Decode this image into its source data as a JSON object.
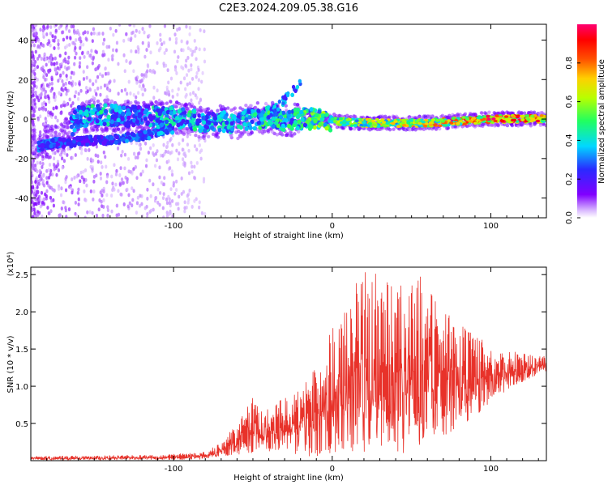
{
  "title": "C2E3.2024.209.05.38.G16",
  "chart_data": [
    {
      "type": "heatmap",
      "xlabel": "Height of straight line (km)",
      "ylabel": "Frequency (Hz)",
      "xlim": [
        -190,
        135
      ],
      "ylim": [
        -50,
        48
      ],
      "xticks": [
        -100,
        0,
        100
      ],
      "yticks": [
        -40,
        -20,
        0,
        20,
        40
      ],
      "colorbar": {
        "label": "Normalized spectral amplitude",
        "range": [
          0.0,
          1.0
        ],
        "ticks": [
          0.0,
          0.2,
          0.4,
          0.6,
          0.8
        ],
        "colormap": "rainbow (white-violet-blue-cyan-green-yellow-red-magenta)"
      },
      "ridge_description": "main energy ridge near 0 Hz widening toward negative heights; two branches near 0 and -10 Hz between -190 and -100 km; scattered noise at low heights",
      "ridge": {
        "x": [
          -185,
          -170,
          -160,
          -150,
          -140,
          -130,
          -120,
          -110,
          -100,
          -90,
          -80,
          -70,
          -60,
          -50,
          -40,
          -30,
          -20,
          -10,
          0,
          20,
          40,
          60,
          80,
          100,
          120,
          133
        ],
        "y": [
          -12,
          -10,
          1,
          2,
          2,
          1,
          2,
          1,
          1,
          0,
          -2,
          -1,
          -2,
          0,
          1,
          -1,
          0,
          0,
          -1,
          -2,
          -2,
          -2,
          -1,
          0,
          0,
          0
        ],
        "amplitude": [
          0.3,
          0.3,
          0.35,
          0.45,
          0.4,
          0.3,
          0.3,
          0.45,
          0.45,
          0.45,
          0.4,
          0.4,
          0.4,
          0.45,
          0.5,
          0.45,
          0.5,
          0.55,
          0.6,
          0.65,
          0.65,
          0.7,
          0.75,
          0.9,
          0.85,
          0.85
        ]
      },
      "branch": {
        "x": [
          -185,
          -175,
          -165,
          -155,
          -145,
          -135,
          -125,
          -115,
          -108,
          -100
        ],
        "y": [
          -14,
          -12,
          -12,
          -11,
          -11,
          -10,
          -9,
          -8,
          -6,
          -5
        ],
        "amplitude": [
          0.3,
          0.3,
          0.25,
          0.25,
          0.25,
          0.3,
          0.3,
          0.3,
          0.35,
          0.35
        ]
      }
    },
    {
      "type": "line",
      "xlabel": "Height of straight line (km)",
      "ylabel": "SNR (10 * v/v)",
      "y_multiplier": "(x10⁴)",
      "xlim": [
        -190,
        135
      ],
      "ylim": [
        0,
        2.6
      ],
      "xticks": [
        -100,
        0,
        100
      ],
      "yticks": [
        0.5,
        1.0,
        1.5,
        2.0,
        2.5
      ],
      "color": "#e8322a",
      "envelope": {
        "x": [
          -190,
          -150,
          -110,
          -80,
          -70,
          -60,
          -50,
          -40,
          -30,
          -20,
          -10,
          0,
          10,
          20,
          30,
          40,
          50,
          60,
          70,
          80,
          90,
          100,
          110,
          120,
          135
        ],
        "y_min": [
          0.01,
          0.01,
          0.01,
          0.01,
          0.06,
          0.08,
          0.1,
          0.1,
          0.08,
          0.06,
          0.05,
          0.1,
          0.1,
          0.1,
          0.05,
          0.05,
          0.1,
          0.25,
          0.3,
          0.45,
          0.6,
          0.75,
          0.95,
          1.05,
          1.2
        ],
        "y_max": [
          0.06,
          0.07,
          0.08,
          0.12,
          0.25,
          0.5,
          0.9,
          0.75,
          0.85,
          0.95,
          1.3,
          1.85,
          2.2,
          2.6,
          2.6,
          2.6,
          2.5,
          2.45,
          2.1,
          1.95,
          1.75,
          1.5,
          1.5,
          1.45,
          1.4
        ]
      }
    }
  ]
}
